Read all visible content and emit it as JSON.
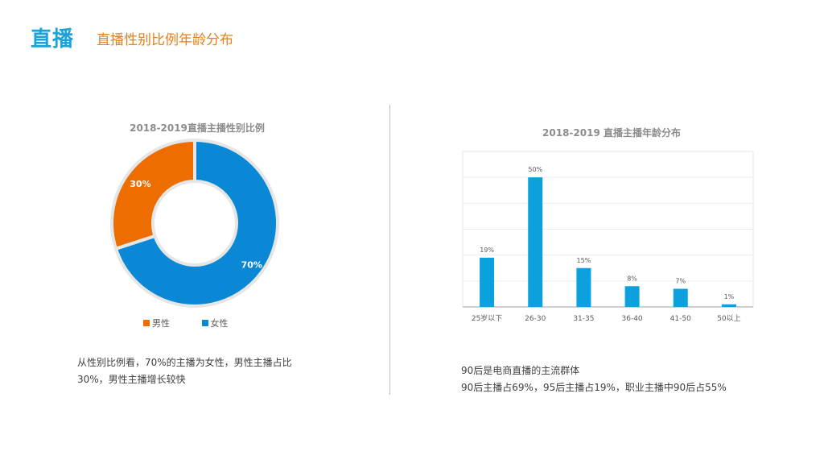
{
  "header": {
    "main": "直播",
    "sub": "直播性别比例年龄分布"
  },
  "colors": {
    "male": "#ed6d00",
    "female": "#0a88d6",
    "bar": "#0ca0dc",
    "accent": "#1aa3d9",
    "subtitle": "#e8801a"
  },
  "chart_data": [
    {
      "type": "pie",
      "title": "2018-2019直播主播性别比例",
      "categories": [
        "男性",
        "女性"
      ],
      "values": [
        30,
        70
      ],
      "labels": [
        "30%",
        "70%"
      ],
      "legend_position": "bottom"
    },
    {
      "type": "bar",
      "title": "2018-2019 直播主播年龄分布",
      "categories": [
        "25岁以下",
        "26-30",
        "31-35",
        "36-40",
        "41-50",
        "50以上"
      ],
      "values": [
        19,
        50,
        15,
        8,
        7,
        1
      ],
      "labels": [
        "19%",
        "50%",
        "15%",
        "8%",
        "7%",
        "1%"
      ],
      "ylim": [
        0,
        60
      ],
      "grid": true
    }
  ],
  "notes": {
    "left_line1": "从性别比例看，70%的主播为女性，男性主播占比",
    "left_line2": "30%，男性主播增长较快",
    "right_line1": "90后是电商直播的主流群体",
    "right_line2": "90后主播占69%，95后主播占19%，职业主播中90后占55%"
  }
}
